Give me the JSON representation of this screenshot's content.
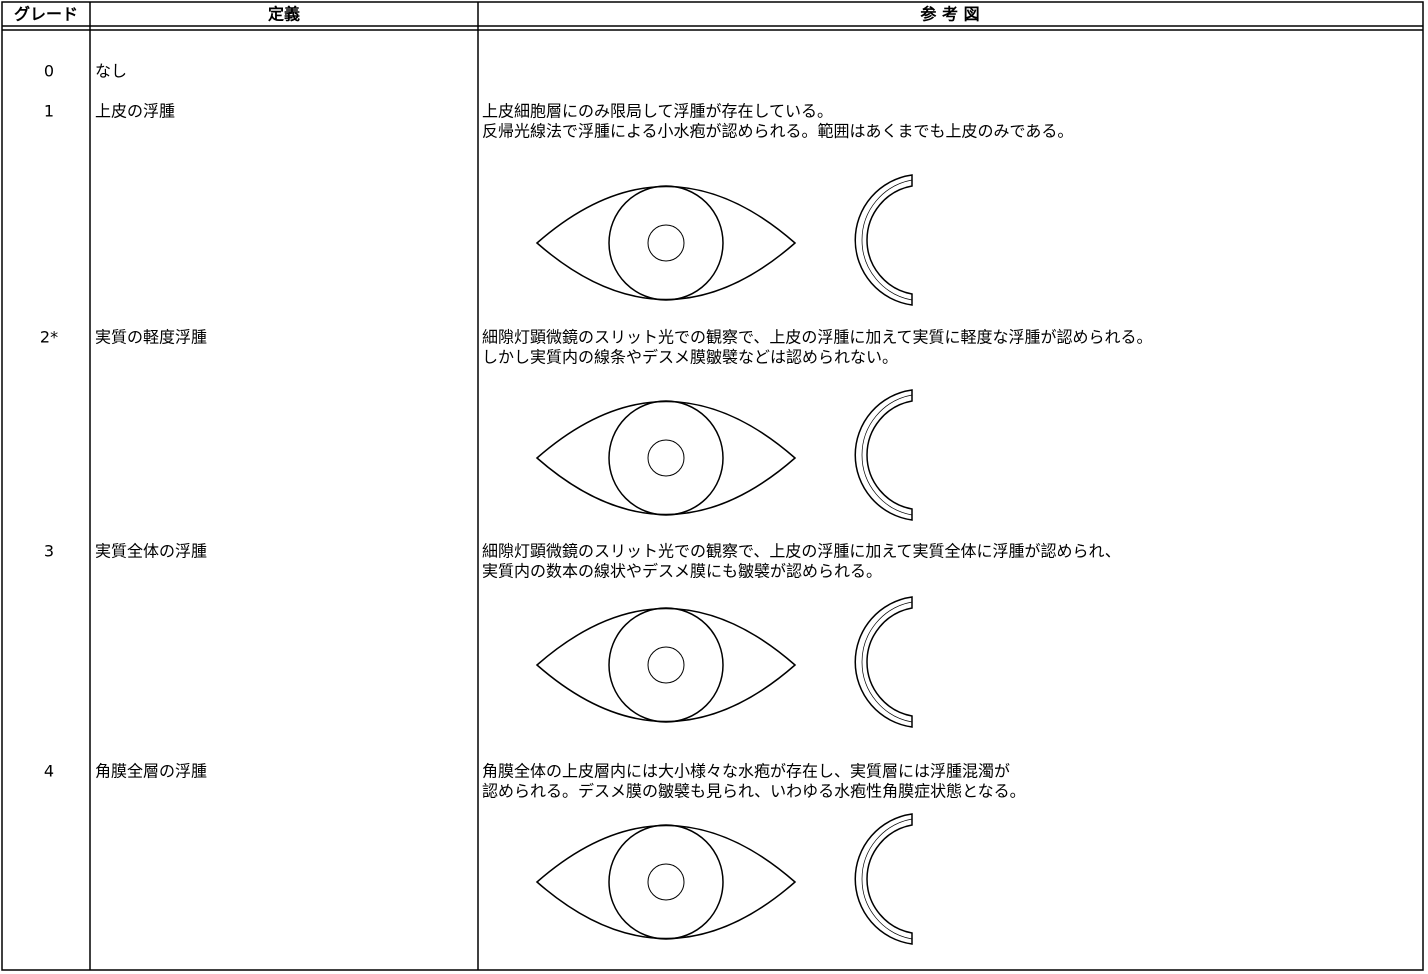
{
  "header": {
    "grade": "グレード",
    "definition": "定義",
    "reference": "参 考 図"
  },
  "rows": [
    {
      "grade": "0",
      "definition": "なし",
      "description": []
    },
    {
      "grade": "1",
      "definition": "上皮の浮腫",
      "description": [
        "上皮細胞層にのみ限局して浮腫が存在している。",
        "反帰光線法で浮腫による小水疱が認められる。範囲はあくまでも上皮のみである。"
      ]
    },
    {
      "grade": "2*",
      "definition": "実質の軽度浮腫",
      "description": [
        "細隙灯顕微鏡のスリット光での観察で、上皮の浮腫に加えて実質に軽度な浮腫が認められる。",
        "しかし実質内の線条やデスメ膜皺襞などは認められない。"
      ]
    },
    {
      "grade": "3",
      "definition": "実質全体の浮腫",
      "description": [
        "細隙灯顕微鏡のスリット光での観察で、上皮の浮腫に加えて実質全体に浮腫が認められ、",
        "実質内の数本の線状やデスメ膜にも皺襞が認められる。"
      ]
    },
    {
      "grade": "4",
      "definition": "角膜全層の浮腫",
      "description": [
        "角膜全体の上皮層内には大小様々な水疱が存在し、実質層には浮腫混濁が",
        "認められる。デスメ膜の皺襞も見られ、いわゆる水疱性角膜症状態となる。"
      ]
    }
  ]
}
